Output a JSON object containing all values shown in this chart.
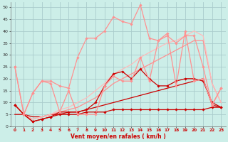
{
  "background_color": "#cceee8",
  "grid_color": "#aacccc",
  "xlabel": "Vent moyen/en rafales ( km/h )",
  "xlim": [
    -0.5,
    23.5
  ],
  "ylim": [
    0,
    52
  ],
  "yticks": [
    0,
    5,
    10,
    15,
    20,
    25,
    30,
    35,
    40,
    45,
    50
  ],
  "xticks": [
    0,
    1,
    2,
    3,
    4,
    5,
    6,
    7,
    8,
    9,
    10,
    11,
    12,
    13,
    14,
    15,
    16,
    17,
    18,
    19,
    20,
    21,
    22,
    23
  ],
  "series": [
    {
      "x": [
        0,
        1,
        2,
        3,
        4,
        5,
        6,
        7,
        8,
        9,
        10,
        11,
        12,
        13,
        14,
        15,
        16,
        17,
        18,
        19,
        20,
        21,
        22,
        23
      ],
      "y": [
        9,
        5,
        2,
        3,
        4,
        5,
        5,
        5,
        6,
        6,
        6,
        7,
        7,
        7,
        7,
        7,
        7,
        7,
        7,
        7,
        7,
        7,
        8,
        8
      ],
      "color": "#cc0000",
      "marker": "D",
      "markersize": 1.8,
      "linewidth": 0.9,
      "zorder": 3
    },
    {
      "x": [
        0,
        1,
        2,
        3,
        4,
        5,
        6,
        7,
        8,
        9,
        10,
        11,
        12,
        13,
        14,
        15,
        16,
        17,
        18,
        19,
        20,
        21,
        22,
        23
      ],
      "y": [
        9,
        5,
        2,
        3,
        4,
        6,
        6,
        6,
        7,
        10,
        17,
        22,
        23,
        20,
        24,
        20,
        17,
        17,
        19,
        20,
        20,
        19,
        10,
        8
      ],
      "color": "#cc0000",
      "marker": "D",
      "markersize": 1.8,
      "linewidth": 0.9,
      "zorder": 3
    },
    {
      "x": [
        0,
        1,
        2,
        3,
        4,
        5,
        6,
        7,
        8,
        9,
        10,
        11,
        12,
        13,
        14,
        15,
        16,
        17,
        18,
        19,
        20,
        21,
        22,
        23
      ],
      "y": [
        25,
        5,
        14,
        19,
        19,
        17,
        16,
        29,
        37,
        37,
        40,
        46,
        44,
        43,
        51,
        37,
        36,
        38,
        35,
        38,
        38,
        25,
        9,
        16
      ],
      "color": "#ff9090",
      "marker": "D",
      "markersize": 1.8,
      "linewidth": 0.9,
      "zorder": 3
    },
    {
      "x": [
        0,
        1,
        2,
        3,
        4,
        5,
        6,
        7,
        8,
        9,
        10,
        11,
        12,
        13,
        14,
        15,
        16,
        17,
        18,
        19,
        20,
        21,
        22,
        23
      ],
      "y": [
        25,
        5,
        14,
        19,
        18,
        6,
        15,
        5,
        5,
        5,
        17,
        21,
        19,
        19,
        29,
        19,
        36,
        39,
        17,
        40,
        19,
        20,
        9,
        16
      ],
      "color": "#ff9090",
      "marker": "D",
      "markersize": 1.8,
      "linewidth": 0.9,
      "zorder": 3
    },
    {
      "x": [
        0,
        1,
        2,
        3,
        4,
        5,
        6,
        7,
        8,
        9,
        10,
        11,
        12,
        13,
        14,
        15,
        16,
        17,
        18,
        19,
        20,
        21,
        22,
        23
      ],
      "y": [
        5,
        5,
        4,
        4,
        5,
        5,
        6,
        6,
        7,
        8,
        9,
        10,
        11,
        12,
        13,
        14,
        15,
        16,
        17,
        18,
        19,
        20,
        9,
        8
      ],
      "color": "#cc0000",
      "marker": null,
      "markersize": 0,
      "linewidth": 0.9,
      "zorder": 2
    },
    {
      "x": [
        0,
        1,
        2,
        3,
        4,
        5,
        6,
        7,
        8,
        9,
        10,
        11,
        12,
        13,
        14,
        15,
        16,
        17,
        18,
        19,
        20,
        21,
        22,
        23
      ],
      "y": [
        9,
        5,
        3,
        4,
        5,
        6,
        7,
        8,
        10,
        12,
        15,
        18,
        20,
        22,
        24,
        26,
        28,
        30,
        32,
        34,
        36,
        36,
        18,
        10
      ],
      "color": "#ff9090",
      "marker": null,
      "markersize": 0,
      "linewidth": 0.9,
      "zorder": 2
    },
    {
      "x": [
        0,
        1,
        2,
        3,
        4,
        5,
        6,
        7,
        8,
        9,
        10,
        11,
        12,
        13,
        14,
        15,
        16,
        17,
        18,
        19,
        20,
        21,
        22,
        23
      ],
      "y": [
        9,
        5,
        3,
        4,
        5,
        7,
        8,
        10,
        12,
        15,
        18,
        22,
        24,
        26,
        29,
        31,
        33,
        35,
        36,
        38,
        40,
        38,
        18,
        10
      ],
      "color": "#ffbbbb",
      "marker": null,
      "markersize": 0,
      "linewidth": 0.9,
      "zorder": 2
    }
  ]
}
